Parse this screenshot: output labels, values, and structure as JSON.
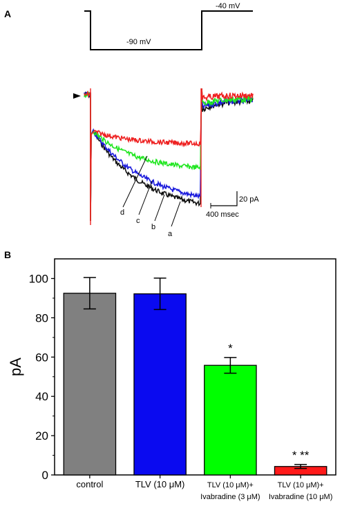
{
  "panel_a": {
    "label": "A",
    "protocol": {
      "hold_label": "-40 mV",
      "step_label": "-90 mV"
    },
    "trace_labels": [
      "a",
      "b",
      "c",
      "d"
    ],
    "traces": [
      {
        "id": "a",
        "color": "#111111"
      },
      {
        "id": "b",
        "color": "#1a1adc"
      },
      {
        "id": "c",
        "color": "#22e622"
      },
      {
        "id": "d",
        "color": "#ee2222"
      }
    ],
    "scalebar": {
      "current_label": "20 pA",
      "time_label": "400  msec"
    }
  },
  "panel_b": {
    "label": "B",
    "colors": {
      "control": "#808080",
      "tlv": "#0a0af0",
      "tlv_iva3": "#00ff00",
      "tlv_iva10": "#ff1a1a"
    }
  },
  "chart_data": {
    "type": "bar",
    "title": "",
    "xlabel": "",
    "ylabel": "pA",
    "ylim": [
      0,
      110
    ],
    "yticks": [
      "0",
      "20",
      "40",
      "60",
      "80",
      "100"
    ],
    "categories": [
      [
        "control"
      ],
      [
        "TLV (10 μM)"
      ],
      [
        "TLV (10 μM)+",
        "Ivabradine (3 μM)"
      ],
      [
        "TLV (10 μM)+",
        "Ivabradine (10 μM)"
      ]
    ],
    "values": [
      92.5,
      92.2,
      55.8,
      4.3
    ],
    "errors": [
      8.0,
      8.0,
      4.0,
      1.0
    ],
    "significance": [
      "",
      "",
      "*",
      "* **"
    ],
    "grid": false
  }
}
